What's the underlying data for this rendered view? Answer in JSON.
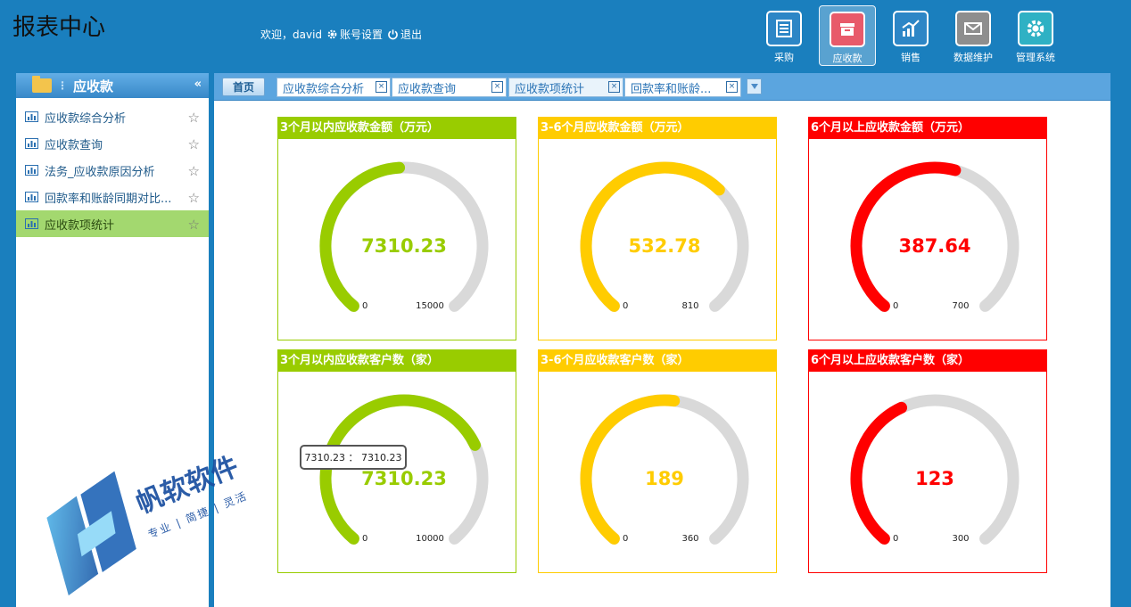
{
  "app_title": "报表中心",
  "userbar": {
    "welcome": "欢迎，david",
    "account_settings": "账号设置",
    "logout": "退出"
  },
  "modules": [
    {
      "label": "采购",
      "icon": "list-icon",
      "color": "#2d86c6",
      "active": false
    },
    {
      "label": "应收款",
      "icon": "inbox-icon",
      "color": "#e85a6a",
      "active": true
    },
    {
      "label": "销售",
      "icon": "chart-up-icon",
      "color": "#2d86c6",
      "active": false
    },
    {
      "label": "数据维护",
      "icon": "mail-icon",
      "color": "#8e8e8e",
      "active": false
    },
    {
      "label": "管理系统",
      "icon": "gear-icon",
      "color": "#2fb1c4",
      "active": false
    }
  ],
  "sidebar": {
    "title": "应收款",
    "collapse_glyph": "«",
    "items": [
      {
        "label": "应收款综合分析",
        "active": false
      },
      {
        "label": "应收款查询",
        "active": false
      },
      {
        "label": "法务_应收款原因分析",
        "active": false
      },
      {
        "label": "回款率和账龄同期对比...",
        "active": false
      },
      {
        "label": "应收款项统计",
        "active": true
      }
    ]
  },
  "tabs": {
    "home": "首页",
    "items": [
      {
        "label": "应收款综合分析",
        "active": false
      },
      {
        "label": "应收款查询",
        "active": false
      },
      {
        "label": "应收款项统计",
        "active": true
      },
      {
        "label": "回款率和账龄...",
        "active": false
      }
    ]
  },
  "chart_data": [
    {
      "type": "gauge",
      "title": "3个月以内应收款金额（万元）",
      "value": 7310.23,
      "value_label": "7310.23",
      "min": 0,
      "max": 15000,
      "color": "#99cc00"
    },
    {
      "type": "gauge",
      "title": "3-6个月应收款金额（万元）",
      "value": 532.78,
      "value_label": "532.78",
      "min": 0,
      "max": 810,
      "color": "#ffcc00"
    },
    {
      "type": "gauge",
      "title": "6个月以上应收款金额（万元）",
      "value": 387.64,
      "value_label": "387.64",
      "min": 0,
      "max": 700,
      "color": "#ff0000"
    },
    {
      "type": "gauge",
      "title": "3个月以内应收款客户数（家）",
      "value": 7310.23,
      "value_label": "7310.23",
      "min": 0,
      "max": 10000,
      "color": "#99cc00"
    },
    {
      "type": "gauge",
      "title": "3-6个月应收款客户数（家）",
      "value": 189,
      "value_label": "189",
      "min": 0,
      "max": 360,
      "color": "#ffcc00"
    },
    {
      "type": "gauge",
      "title": "6个月以上应收款客户数（家）",
      "value": 123,
      "value_label": "123",
      "min": 0,
      "max": 300,
      "color": "#ff0000"
    }
  ],
  "tooltip": "7310.23 ： 7310.23",
  "watermark": {
    "brand": "帆软软件",
    "slogan": "专业 | 简捷 | 灵活"
  }
}
